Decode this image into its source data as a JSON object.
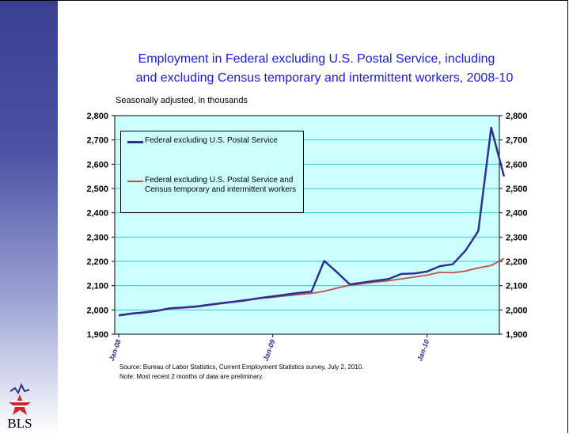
{
  "slide": {
    "title_line1": "Employment in Federal excluding U.S. Postal Service, including",
    "title_line2": "and excluding Census temporary and intermittent workers, 2008-10",
    "subtitle": "Seasonally adjusted, in thousands",
    "source": "Source:  Bureau of Labor Statistics, Current Employment Statistics survey, July 2, 2010.",
    "note": "Note: Most recent 2 months of data are preliminary.",
    "logo_text": "BLS"
  },
  "colors": {
    "plot_background": "#ccffff",
    "gridline": "#33cccc",
    "series_total": "#2e3192",
    "series_excl_census": "#c0504d",
    "tick_label_x": "#2e3192",
    "title": "#1a1ae6"
  },
  "chart_data": {
    "type": "line",
    "title": "Employment in Federal excluding U.S. Postal Service, including and excluding Census temporary and intermittent workers, 2008-10",
    "subtitle": "Seasonally adjusted, in thousands",
    "ylim": [
      1900,
      2800
    ],
    "yticks": [
      1900,
      2000,
      2100,
      2200,
      2300,
      2400,
      2500,
      2600,
      2700,
      2800
    ],
    "ytick_labels": [
      "1,900",
      "2,000",
      "2,100",
      "2,200",
      "2,300",
      "2,400",
      "2,500",
      "2,600",
      "2,700",
      "2,800"
    ],
    "secondary_y_axis": true,
    "x_start": "2008-01",
    "x_tick_labels": [
      {
        "label": "Jan-08",
        "index": 0
      },
      {
        "label": "Jan-09",
        "index": 12
      },
      {
        "label": "Jan-10",
        "index": 24
      }
    ],
    "grid": true,
    "legend_placement": "top-left",
    "series": [
      {
        "name": "Federal excluding U.S. Postal Service",
        "values": [
          1978,
          1985,
          1990,
          1997,
          2007,
          2010,
          2014,
          2021,
          2028,
          2034,
          2041,
          2049,
          2056,
          2063,
          2070,
          2075,
          2202,
          2155,
          2105,
          2113,
          2120,
          2127,
          2148,
          2150,
          2158,
          2180,
          2188,
          2244,
          2325,
          2750,
          2550
        ]
      },
      {
        "name": "Federal excluding U.S. Postal Service and Census temporary and intermittent workers",
        "values": [
          1976,
          1983,
          1988,
          1995,
          2005,
          2008,
          2012,
          2019,
          2026,
          2032,
          2039,
          2047,
          2052,
          2058,
          2063,
          2068,
          2077,
          2090,
          2102,
          2108,
          2115,
          2120,
          2128,
          2135,
          2143,
          2155,
          2153,
          2160,
          2173,
          2183,
          2212
        ]
      }
    ]
  }
}
